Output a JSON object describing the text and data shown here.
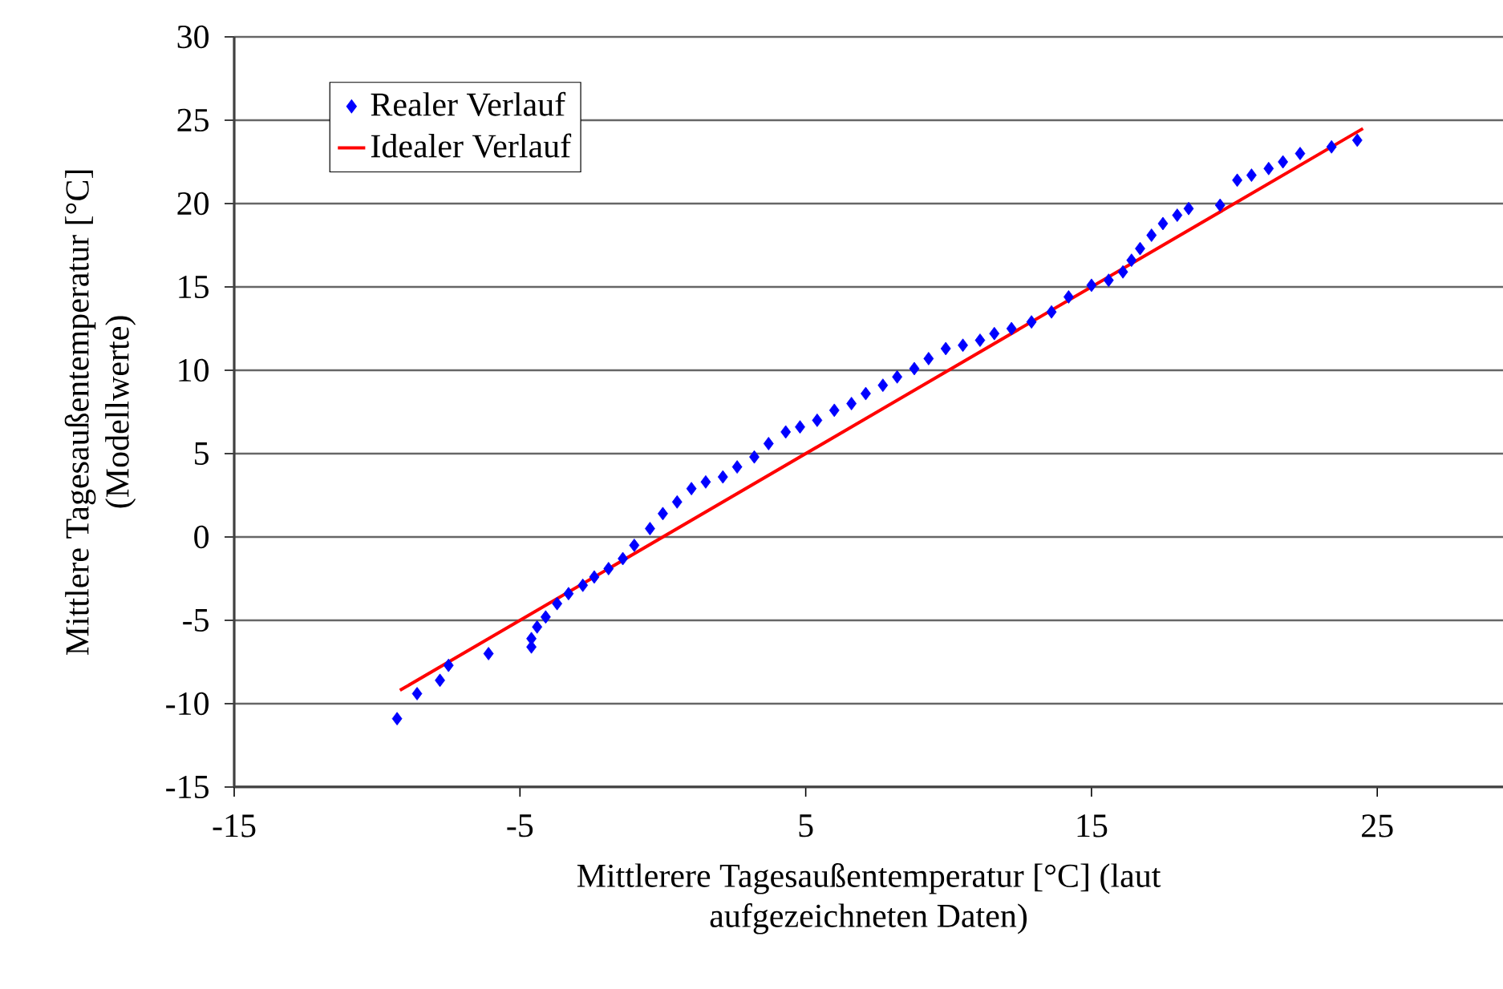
{
  "chart_data": {
    "type": "scatter",
    "xlabel": "Mittlerere Tagesaußentemperatur [°C] (laut aufgezeichneten Daten)",
    "ylabel": "Mittlere Tagesaußentemperatur [°C] (Modellwerte)",
    "xlim": [
      -15,
      29.4
    ],
    "xticks": [
      -15,
      -5,
      5,
      15,
      25
    ],
    "ylim": [
      -15,
      30
    ],
    "yticks": [
      -15,
      -10,
      -5,
      0,
      5,
      10,
      15,
      20,
      25,
      30
    ],
    "grid": "y",
    "legend": "top left",
    "series": [
      {
        "name": "Realer Verlauf",
        "color": "#0000ff",
        "marker": "diamond",
        "x": [
          -9.3,
          -8.6,
          -7.8,
          -7.5,
          -6.1,
          -4.6,
          -4.6,
          -4.4,
          -4.1,
          -3.7,
          -3.3,
          -2.8,
          -2.4,
          -1.9,
          -1.4,
          -1.0,
          -0.45,
          0.0,
          0.5,
          1.0,
          1.5,
          2.1,
          2.6,
          3.2,
          3.7,
          4.3,
          4.8,
          5.4,
          6.0,
          6.6,
          7.1,
          7.7,
          8.2,
          8.8,
          9.3,
          9.9,
          10.5,
          11.1,
          11.6,
          12.2,
          12.9,
          13.6,
          14.2,
          15.0,
          15.6,
          16.1,
          16.4,
          16.7,
          17.1,
          17.5,
          18.0,
          18.4,
          19.5,
          20.1,
          20.6,
          21.2,
          21.7,
          22.3,
          23.4,
          24.3
        ],
        "values": [
          -10.9,
          -9.4,
          -8.6,
          -7.7,
          -7.0,
          -6.1,
          -6.6,
          -5.4,
          -4.8,
          -4.0,
          -3.4,
          -2.9,
          -2.4,
          -1.9,
          -1.3,
          -0.5,
          0.5,
          1.4,
          2.1,
          2.9,
          3.3,
          3.6,
          4.2,
          4.8,
          5.6,
          6.3,
          6.6,
          7.0,
          7.6,
          8.0,
          8.6,
          9.1,
          9.6,
          10.1,
          10.7,
          11.3,
          11.5,
          11.8,
          12.2,
          12.5,
          12.9,
          13.5,
          14.4,
          15.1,
          15.4,
          15.9,
          16.6,
          17.3,
          18.1,
          18.8,
          19.3,
          19.7,
          19.9,
          21.4,
          21.7,
          22.1,
          22.5,
          23.0,
          23.4,
          23.8
        ]
      },
      {
        "name": "Idealer Verlauf",
        "color": "#ff0000",
        "type": "line",
        "x": [
          -9.2,
          24.5
        ],
        "values": [
          -9.2,
          24.5
        ]
      }
    ]
  }
}
